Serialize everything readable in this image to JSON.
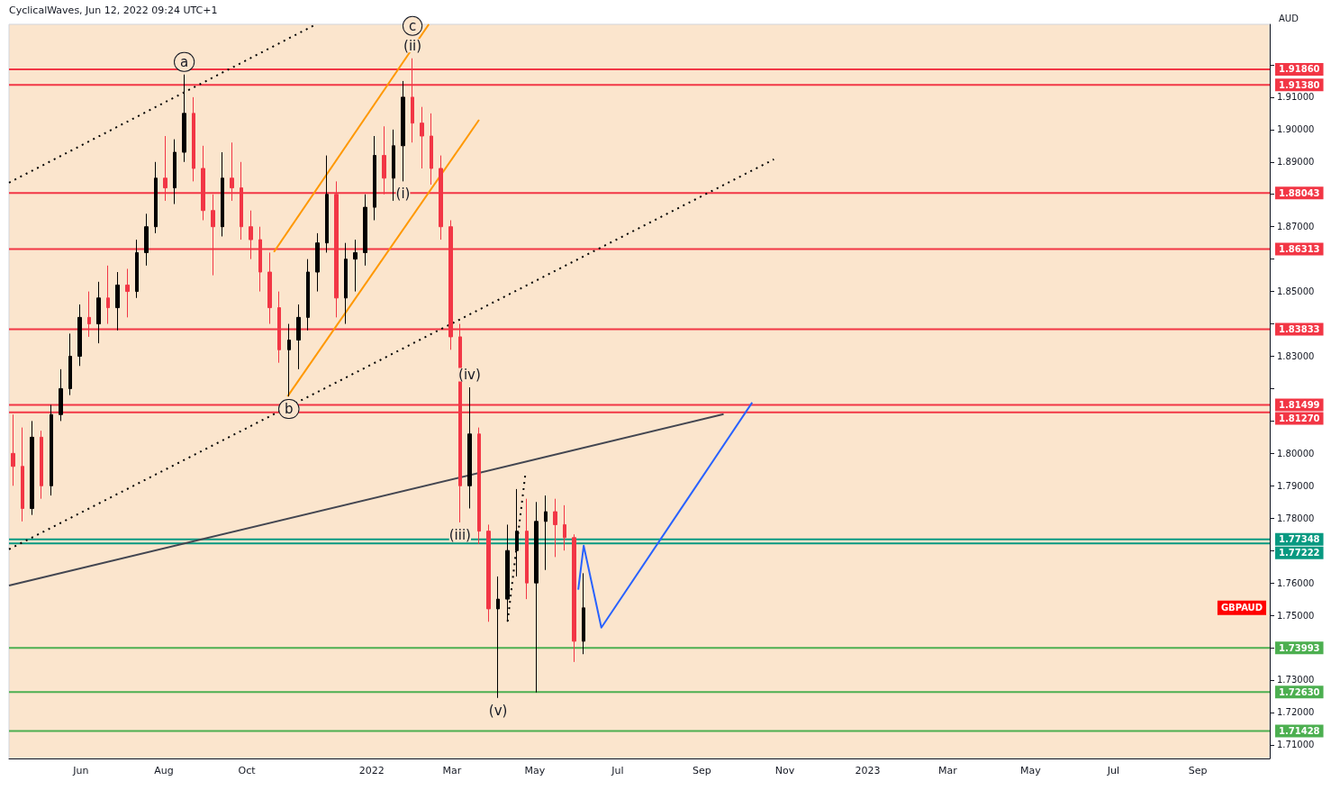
{
  "chart_data": {
    "type": "candlestick",
    "ylabel": "AUD",
    "marker": "none",
    "annotations": [
      "CyclicalWaves, Jun 12, 2022 09:24 UTC+1",
      "GBPAUD",
      {
        "text": "a",
        "x": "2021-08-16",
        "y": 1.917
      },
      {
        "text": "b",
        "x": "2021-11-01",
        "y": 1.8176
      },
      {
        "text": "(ii)",
        "x": "2022-01-31",
        "y": 1.922
      },
      {
        "text": "c",
        "x": "2022-01-31",
        "y": 1.922
      },
      {
        "text": "(i)",
        "x": "2022-01-24",
        "y": 1.884
      },
      {
        "text": "(iv)",
        "x": "2022-03-14",
        "y": 1.8204
      },
      {
        "text": "(iii)",
        "x": "2022-03-07",
        "y": 1.7787
      },
      {
        "text": "(v)",
        "x": "2022-04-04",
        "y": 1.7245
      }
    ],
    "x": [
      "2021-04-12",
      "2021-04-19",
      "2021-04-26",
      "2021-05-03",
      "2021-05-10",
      "2021-05-17",
      "2021-05-24",
      "2021-05-31",
      "2021-06-07",
      "2021-06-14",
      "2021-06-21",
      "2021-06-28",
      "2021-07-05",
      "2021-07-12",
      "2021-07-19",
      "2021-07-26",
      "2021-08-02",
      "2021-08-09",
      "2021-08-16",
      "2021-08-23",
      "2021-08-30",
      "2021-09-06",
      "2021-09-13",
      "2021-09-20",
      "2021-09-27",
      "2021-10-04",
      "2021-10-11",
      "2021-10-18",
      "2021-10-25",
      "2021-11-01",
      "2021-11-08",
      "2021-11-15",
      "2021-11-22",
      "2021-11-29",
      "2021-12-06",
      "2021-12-13",
      "2021-12-20",
      "2021-12-27",
      "2022-01-03",
      "2022-01-10",
      "2022-01-17",
      "2022-01-24",
      "2022-01-31",
      "2022-02-07",
      "2022-02-14",
      "2022-02-21",
      "2022-02-28",
      "2022-03-07",
      "2022-03-14",
      "2022-03-21",
      "2022-03-28",
      "2022-04-04",
      "2022-04-11",
      "2022-04-18",
      "2022-04-25",
      "2022-05-02",
      "2022-05-09",
      "2022-05-16",
      "2022-05-23",
      "2022-05-30",
      "2022-06-06"
    ],
    "ohlc": [
      [
        1.8,
        1.812,
        1.79,
        1.796
      ],
      [
        1.796,
        1.808,
        1.779,
        1.783
      ],
      [
        1.783,
        1.81,
        1.781,
        1.805
      ],
      [
        1.805,
        1.807,
        1.786,
        1.79
      ],
      [
        1.79,
        1.815,
        1.787,
        1.812
      ],
      [
        1.812,
        1.826,
        1.81,
        1.82
      ],
      [
        1.82,
        1.837,
        1.818,
        1.83
      ],
      [
        1.83,
        1.846,
        1.827,
        1.842
      ],
      [
        1.842,
        1.85,
        1.836,
        1.84
      ],
      [
        1.84,
        1.853,
        1.834,
        1.848
      ],
      [
        1.848,
        1.858,
        1.84,
        1.845
      ],
      [
        1.845,
        1.856,
        1.838,
        1.852
      ],
      [
        1.852,
        1.857,
        1.842,
        1.85
      ],
      [
        1.85,
        1.866,
        1.848,
        1.862
      ],
      [
        1.862,
        1.874,
        1.858,
        1.87
      ],
      [
        1.87,
        1.89,
        1.868,
        1.885
      ],
      [
        1.885,
        1.898,
        1.878,
        1.882
      ],
      [
        1.882,
        1.897,
        1.877,
        1.893
      ],
      [
        1.893,
        1.917,
        1.89,
        1.905
      ],
      [
        1.905,
        1.91,
        1.884,
        1.888
      ],
      [
        1.888,
        1.895,
        1.872,
        1.875
      ],
      [
        1.875,
        1.88,
        1.855,
        1.87
      ],
      [
        1.87,
        1.893,
        1.867,
        1.885
      ],
      [
        1.885,
        1.896,
        1.878,
        1.882
      ],
      [
        1.882,
        1.89,
        1.866,
        1.87
      ],
      [
        1.87,
        1.875,
        1.86,
        1.866
      ],
      [
        1.866,
        1.87,
        1.85,
        1.856
      ],
      [
        1.856,
        1.862,
        1.84,
        1.845
      ],
      [
        1.845,
        1.85,
        1.828,
        1.832
      ],
      [
        1.832,
        1.84,
        1.8176,
        1.835
      ],
      [
        1.835,
        1.846,
        1.826,
        1.842
      ],
      [
        1.842,
        1.86,
        1.838,
        1.856
      ],
      [
        1.856,
        1.868,
        1.85,
        1.865
      ],
      [
        1.865,
        1.892,
        1.862,
        1.88
      ],
      [
        1.88,
        1.884,
        1.842,
        1.848
      ],
      [
        1.848,
        1.865,
        1.84,
        1.86
      ],
      [
        1.86,
        1.866,
        1.85,
        1.862
      ],
      [
        1.862,
        1.88,
        1.858,
        1.876
      ],
      [
        1.876,
        1.898,
        1.872,
        1.892
      ],
      [
        1.892,
        1.901,
        1.88,
        1.885
      ],
      [
        1.885,
        1.9,
        1.878,
        1.895
      ],
      [
        1.895,
        1.915,
        1.884,
        1.91
      ],
      [
        1.91,
        1.922,
        1.896,
        1.902
      ],
      [
        1.902,
        1.907,
        1.888,
        1.898
      ],
      [
        1.898,
        1.905,
        1.883,
        1.888
      ],
      [
        1.888,
        1.892,
        1.866,
        1.87
      ],
      [
        1.87,
        1.872,
        1.832,
        1.836
      ],
      [
        1.836,
        1.84,
        1.7787,
        1.79
      ],
      [
        1.79,
        1.8204,
        1.783,
        1.806
      ],
      [
        1.806,
        1.808,
        1.772,
        1.776
      ],
      [
        1.776,
        1.778,
        1.748,
        1.752
      ],
      [
        1.752,
        1.762,
        1.7245,
        1.755
      ],
      [
        1.755,
        1.778,
        1.748,
        1.77
      ],
      [
        1.77,
        1.789,
        1.762,
        1.776
      ],
      [
        1.776,
        1.786,
        1.755,
        1.76
      ],
      [
        1.76,
        1.785,
        1.7262,
        1.779
      ],
      [
        1.779,
        1.787,
        1.764,
        1.782
      ],
      [
        1.782,
        1.786,
        1.768,
        1.778
      ],
      [
        1.778,
        1.784,
        1.77,
        1.774
      ],
      [
        1.774,
        1.775,
        1.7356,
        1.742
      ],
      [
        1.742,
        1.763,
        1.738,
        1.7523
      ]
    ],
    "colors": [
      "#f23645",
      "#f23645",
      "#000000",
      "#f23645",
      "#000000",
      "#000000",
      "#000000",
      "#000000",
      "#f23645",
      "#000000",
      "#f23645",
      "#000000",
      "#f23645",
      "#000000",
      "#000000",
      "#000000",
      "#f23645",
      "#000000",
      "#000000",
      "#f23645",
      "#f23645",
      "#f23645",
      "#000000",
      "#f23645",
      "#f23645",
      "#f23645",
      "#f23645",
      "#f23645",
      "#f23645",
      "#000000",
      "#000000",
      "#000000",
      "#000000",
      "#000000",
      "#f23645",
      "#000000",
      "#000000",
      "#000000",
      "#000000",
      "#f23645",
      "#000000",
      "#000000",
      "#f23645",
      "#f23645",
      "#f23645",
      "#f23645",
      "#f23645",
      "#f23645",
      "#000000",
      "#f23645",
      "#f23645",
      "#000000",
      "#000000",
      "#000000",
      "#f23645",
      "#000000",
      "#000000",
      "#f23645",
      "#f23645",
      "#f23645",
      "#000000"
    ],
    "series": [
      {
        "type": "line",
        "x": [
          "2021-04-09",
          "2021-11-21"
        ],
        "values": [
          1.8836,
          1.9325
        ],
        "color": "#000000",
        "line_style": "dotted"
      },
      {
        "type": "line",
        "x": [
          "2021-04-09",
          "2022-10-24"
        ],
        "values": [
          1.7704,
          1.8908
        ],
        "color": "#000000",
        "line_style": "dotted"
      },
      {
        "type": "line",
        "x": [
          "2021-10-21",
          "2022-02-12"
        ],
        "values": [
          1.8622,
          1.9325
        ],
        "color": "#ff9800",
        "line_style": "solid"
      },
      {
        "type": "line",
        "x": [
          "2021-10-31",
          "2022-03-21"
        ],
        "values": [
          1.8176,
          1.903
        ],
        "color": "#ff9800",
        "line_style": "solid"
      },
      {
        "type": "line",
        "x": [
          "2021-04-09",
          "2022-09-17"
        ],
        "values": [
          1.7592,
          1.8121
        ],
        "color": "#434651",
        "line_style": "solid"
      },
      {
        "type": "line",
        "x": [
          "2022-04-11",
          "2022-04-24"
        ],
        "values": [
          1.7481,
          1.7934
        ],
        "color": "#000000",
        "line_style": "dotted"
      },
      {
        "type": "line",
        "x": [
          "2022-06-02",
          "2022-06-06",
          "2022-06-19",
          "2022-10-08"
        ],
        "values": [
          1.7579,
          1.7715,
          1.7462,
          1.8157
        ],
        "color": "#2962ff",
        "line_style": "solid"
      }
    ],
    "ref_lines": [
      {
        "axis": "y",
        "value": 1.9186,
        "label": "1.91860",
        "color": "#f23645"
      },
      {
        "axis": "y",
        "value": 1.9138,
        "label": "1.91380",
        "color": "#f23645"
      },
      {
        "axis": "y",
        "value": 1.88043,
        "label": "1.88043",
        "color": "#f23645"
      },
      {
        "axis": "y",
        "value": 1.86313,
        "label": "1.86313",
        "color": "#f23645"
      },
      {
        "axis": "y",
        "value": 1.83833,
        "label": "1.83833",
        "color": "#f23645"
      },
      {
        "axis": "y",
        "value": 1.81499,
        "label": "1.81499",
        "color": "#f23645"
      },
      {
        "axis": "y",
        "value": 1.8127,
        "label": "1.81270",
        "color": "#f23645"
      },
      {
        "axis": "y",
        "value": 1.77348,
        "label": "1.77348",
        "color": "#089981"
      },
      {
        "axis": "y",
        "value": 1.77222,
        "label": "1.77222",
        "color": "#089981"
      },
      {
        "axis": "y",
        "value": 1.73993,
        "label": "1.73993",
        "color": "#4caf50"
      },
      {
        "axis": "y",
        "value": 1.7263,
        "label": "1.72630",
        "color": "#4caf50"
      },
      {
        "axis": "y",
        "value": 1.71428,
        "label": "1.71428",
        "color": "#4caf50"
      }
    ],
    "xlim": [
      "2021-04-09",
      "2023-10-24"
    ],
    "xticks": [
      {
        "value": "2021-06-01",
        "label": "Jun"
      },
      {
        "value": "2021-08-01",
        "label": "Aug"
      },
      {
        "value": "2021-10-01",
        "label": "Oct"
      },
      {
        "value": "2022-01-01",
        "label": "2022"
      },
      {
        "value": "2022-03-01",
        "label": "Mar"
      },
      {
        "value": "2022-05-01",
        "label": "May"
      },
      {
        "value": "2022-07-01",
        "label": "Jul"
      },
      {
        "value": "2022-09-01",
        "label": "Sep"
      },
      {
        "value": "2022-11-01",
        "label": "Nov"
      },
      {
        "value": "2023-01-01",
        "label": "2023"
      },
      {
        "value": "2023-03-01",
        "label": "Mar"
      },
      {
        "value": "2023-05-01",
        "label": "May"
      },
      {
        "value": "2023-07-01",
        "label": "Jul"
      },
      {
        "value": "2023-09-01",
        "label": "Sep"
      }
    ],
    "ylim": [
      1.7058,
      1.9325
    ],
    "yticks": [
      {
        "value": 1.71,
        "label": "1.71000"
      },
      {
        "value": 1.72,
        "label": "1.72000"
      },
      {
        "value": 1.73,
        "label": "1.73000"
      },
      {
        "value": 1.74,
        "label": null
      },
      {
        "value": 1.75,
        "label": "1.75000"
      },
      {
        "value": 1.76,
        "label": "1.76000"
      },
      {
        "value": 1.77,
        "label": null
      },
      {
        "value": 1.78,
        "label": "1.78000"
      },
      {
        "value": 1.79,
        "label": "1.79000"
      },
      {
        "value": 1.8,
        "label": "1.80000"
      },
      {
        "value": 1.81,
        "label": null
      },
      {
        "value": 1.82,
        "label": null
      },
      {
        "value": 1.83,
        "label": "1.83000"
      },
      {
        "value": 1.84,
        "label": null
      },
      {
        "value": 1.85,
        "label": "1.85000"
      },
      {
        "value": 1.86,
        "label": null
      },
      {
        "value": 1.87,
        "label": "1.87000"
      },
      {
        "value": 1.88,
        "label": null
      },
      {
        "value": 1.89,
        "label": "1.89000"
      },
      {
        "value": 1.9,
        "label": "1.90000"
      },
      {
        "value": 1.91,
        "label": "1.91000"
      },
      {
        "value": 1.92,
        "label": null
      }
    ]
  }
}
